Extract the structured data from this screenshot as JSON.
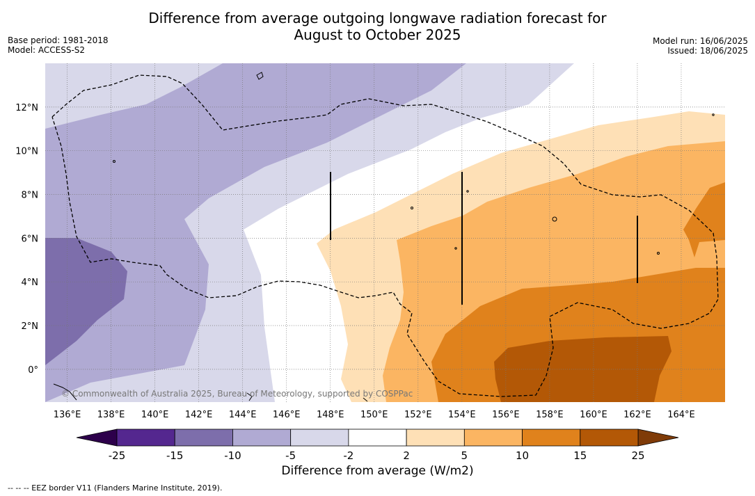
{
  "header": {
    "title_line1": "Difference from average outgoing longwave radiation forecast for",
    "title_line2": "August to October 2025",
    "base_period": "Base period: 1981-2018",
    "model": "Model: ACCESS-S2",
    "model_run": "Model run: 16/06/2025",
    "issued": "Issued: 18/06/2025"
  },
  "map": {
    "lon_range": [
      135,
      166
    ],
    "lat_range": [
      -1.5,
      14
    ],
    "lon_ticks": [
      "136°E",
      "138°E",
      "140°E",
      "142°E",
      "144°E",
      "146°E",
      "148°E",
      "150°E",
      "152°E",
      "154°E",
      "156°E",
      "158°E",
      "160°E",
      "162°E",
      "164°E"
    ],
    "lat_ticks": [
      "0°",
      "2°N",
      "4°N",
      "6°N",
      "8°N",
      "10°N",
      "12°N"
    ],
    "copyright": "© Commonwealth of Australia 2025, Bureau of Meteorology, supported by COSPPac"
  },
  "colorbar": {
    "label": "Difference from average (W/m2)",
    "ticks": [
      "-25",
      "-15",
      "-10",
      "-5",
      "-2",
      "2",
      "5",
      "10",
      "15",
      "25"
    ],
    "colors": [
      "#54278f",
      "#7d6eab",
      "#b0aad3",
      "#d8d8ea",
      "#ffffff",
      "#fee0b6",
      "#fbb562",
      "#e0821c",
      "#b35806"
    ],
    "under_color": "#2d004b",
    "over_color": "#7f3b08"
  },
  "footnote": "--  --  -- EEZ border V11 (Flanders Marine Institute, 2019)."
}
